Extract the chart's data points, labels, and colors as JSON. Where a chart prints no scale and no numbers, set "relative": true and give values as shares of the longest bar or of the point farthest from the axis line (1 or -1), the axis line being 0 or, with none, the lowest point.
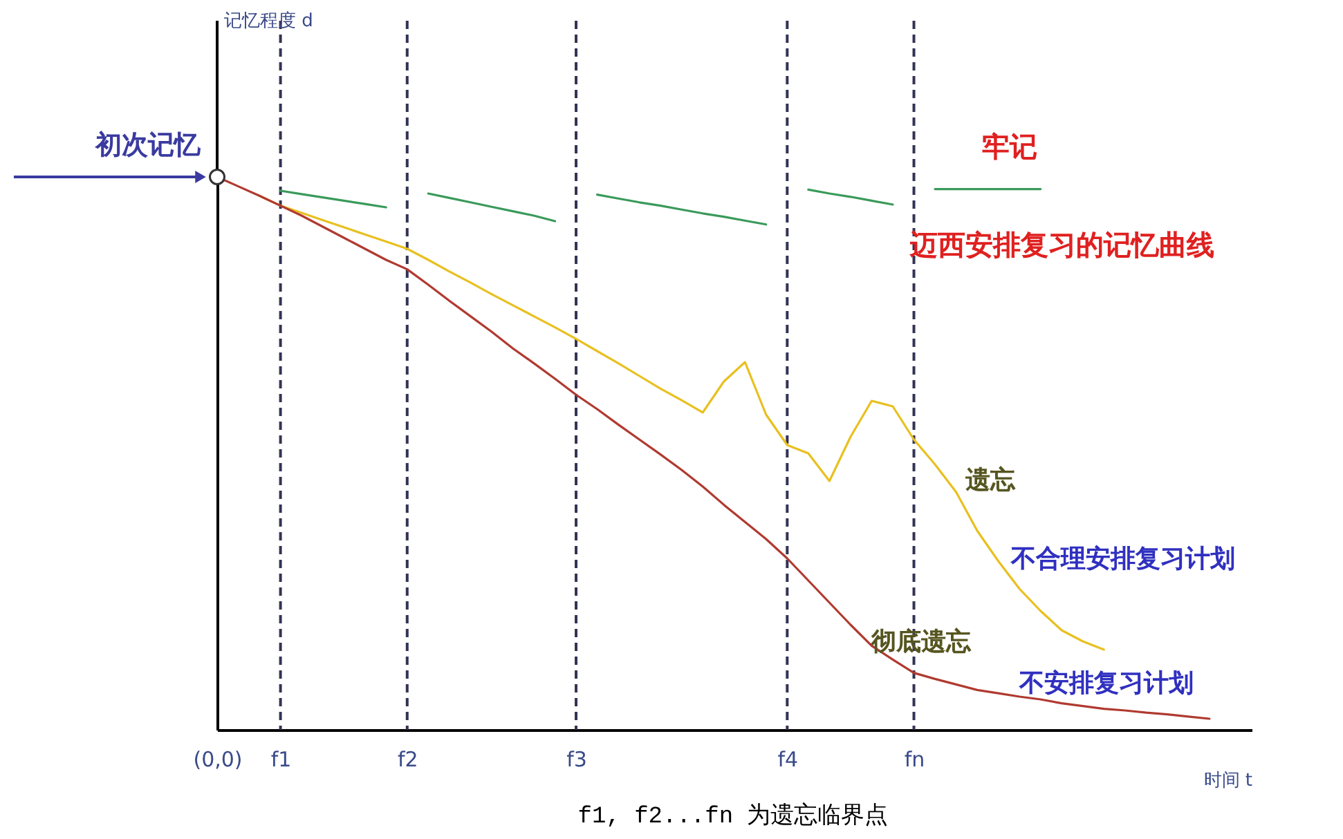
{
  "chart_data": {
    "type": "line",
    "relative": true,
    "xlabel": "时间 t",
    "categories": [
      "(0,0)",
      null,
      null,
      "f1",
      null,
      null,
      null,
      null,
      null,
      "f2",
      null,
      null,
      null,
      null,
      null,
      null,
      null,
      "f3",
      null,
      null,
      null,
      null,
      null,
      null,
      null,
      null,
      null,
      "f4",
      null,
      null,
      null,
      null,
      null,
      "fn",
      null,
      null,
      null,
      null,
      null,
      null,
      null,
      null,
      null,
      null,
      null,
      null,
      null,
      null,
      null,
      null
    ],
    "ref_lines": [
      {
        "axis": "x",
        "value": "f1",
        "line_style": "dashed",
        "color": "#333355"
      },
      {
        "axis": "x",
        "value": "f2",
        "line_style": "dashed",
        "color": "#333355"
      },
      {
        "axis": "x",
        "value": "f3",
        "line_style": "dashed",
        "color": "#333355"
      },
      {
        "axis": "x",
        "value": "f4",
        "line_style": "dashed",
        "color": "#333355"
      },
      {
        "axis": "x",
        "value": "fn",
        "line_style": "dashed",
        "color": "#333355"
      }
    ],
    "series": [
      {
        "color": "#3a9a5a",
        "values": [
          null,
          null,
          null,
          0.975,
          0.969,
          0.963,
          0.957,
          0.951,
          0.945,
          null,
          0.97,
          0.962,
          0.954,
          0.946,
          0.938,
          0.93,
          0.92,
          null,
          0.968,
          0.961,
          0.954,
          0.948,
          0.941,
          0.934,
          0.928,
          0.921,
          0.914,
          null,
          0.977,
          0.97,
          0.964,
          0.957,
          0.95,
          null,
          0.978,
          0.978,
          0.978,
          0.978,
          0.978,
          0.978,
          null,
          null,
          null,
          null,
          null,
          null,
          null,
          null,
          null,
          null
        ]
      },
      {
        "color": "#e8c020",
        "values": [
          null,
          null,
          0.966,
          0.948,
          0.935,
          0.922,
          0.909,
          0.896,
          0.883,
          0.87,
          0.85,
          0.829,
          0.809,
          0.788,
          0.768,
          0.748,
          0.728,
          0.707,
          0.685,
          0.663,
          0.64,
          0.617,
          0.596,
          0.574,
          0.63,
          0.665,
          0.57,
          0.515,
          0.5,
          0.45,
          0.53,
          0.595,
          0.585,
          0.525,
          0.48,
          0.43,
          0.36,
          0.305,
          0.255,
          0.215,
          0.18,
          0.16,
          0.145,
          null,
          null,
          null,
          null,
          null,
          null,
          null
        ]
      },
      {
        "color": "#b03a30",
        "values": [
          1,
          0.983,
          0.966,
          0.948,
          0.93,
          0.91,
          0.89,
          0.87,
          0.85,
          0.833,
          0.805,
          0.776,
          0.748,
          0.72,
          0.69,
          0.663,
          0.635,
          0.606,
          0.58,
          0.552,
          0.525,
          0.498,
          0.47,
          0.44,
          0.407,
          0.376,
          0.345,
          0.31,
          0.27,
          0.23,
          0.19,
          0.152,
          0.127,
          0.103,
          0.092,
          0.082,
          0.072,
          0.066,
          0.06,
          0.055,
          0.048,
          0.043,
          0.038,
          0.035,
          0.031,
          0.028,
          0.024,
          0.02,
          null,
          null
        ]
      },
      {
        "type": "scatter",
        "color": "#ffffff",
        "marker": "circle",
        "values": [
          1,
          null,
          null,
          null,
          null,
          null,
          null,
          null,
          null,
          null,
          null,
          null,
          null,
          null,
          null,
          null,
          null,
          null,
          null,
          null,
          null,
          null,
          null,
          null,
          null,
          null,
          null,
          null,
          null,
          null,
          null,
          null,
          null,
          null,
          null,
          null,
          null,
          null,
          null,
          null,
          null,
          null,
          null,
          null,
          null,
          null,
          null,
          null,
          null,
          null
        ]
      }
    ],
    "annotations": [
      "初次记忆",
      "f1, f2...fn 为遗忘临界点",
      "牢记",
      "迈西安排复习的记忆曲线",
      "遗忘",
      "不合理安排复习计划",
      "彻底遗忘",
      "不安排复习计划",
      "记忆程度 d"
    ]
  }
}
